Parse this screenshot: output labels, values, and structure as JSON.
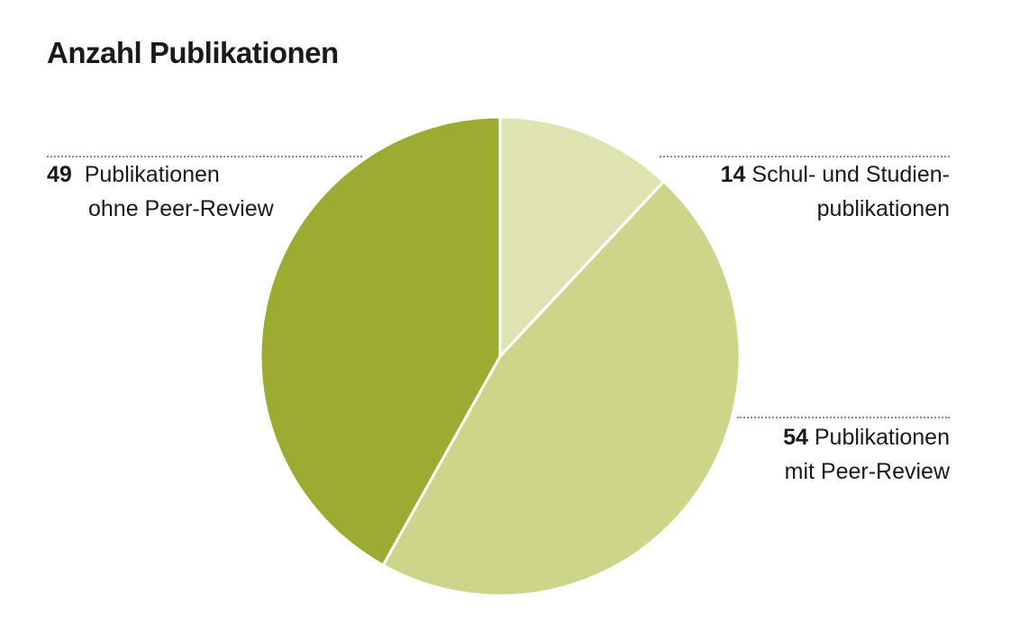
{
  "chart_data": {
    "type": "pie",
    "title": "Anzahl Publikationen",
    "slices": [
      {
        "label": "Schul- und Studienpublikationen",
        "value": 14,
        "color": "#dde4b1",
        "text_num": "14",
        "text_line1": "Schul- und Studien-",
        "text_line2": "publikationen"
      },
      {
        "label": "Publikationen mit Peer-Review",
        "value": 54,
        "color": "#cdd58a",
        "text_num": "54",
        "text_line1": "Publikationen",
        "text_line2": "mit Peer-Review"
      },
      {
        "label": "Publikationen ohne Peer-Review",
        "value": 49,
        "color": "#9dac30",
        "text_num": "49",
        "text_line1": "Publikationen",
        "text_line2": "ohne Peer-Review"
      }
    ],
    "start_angle": "12 o'clock",
    "direction": "clockwise"
  }
}
